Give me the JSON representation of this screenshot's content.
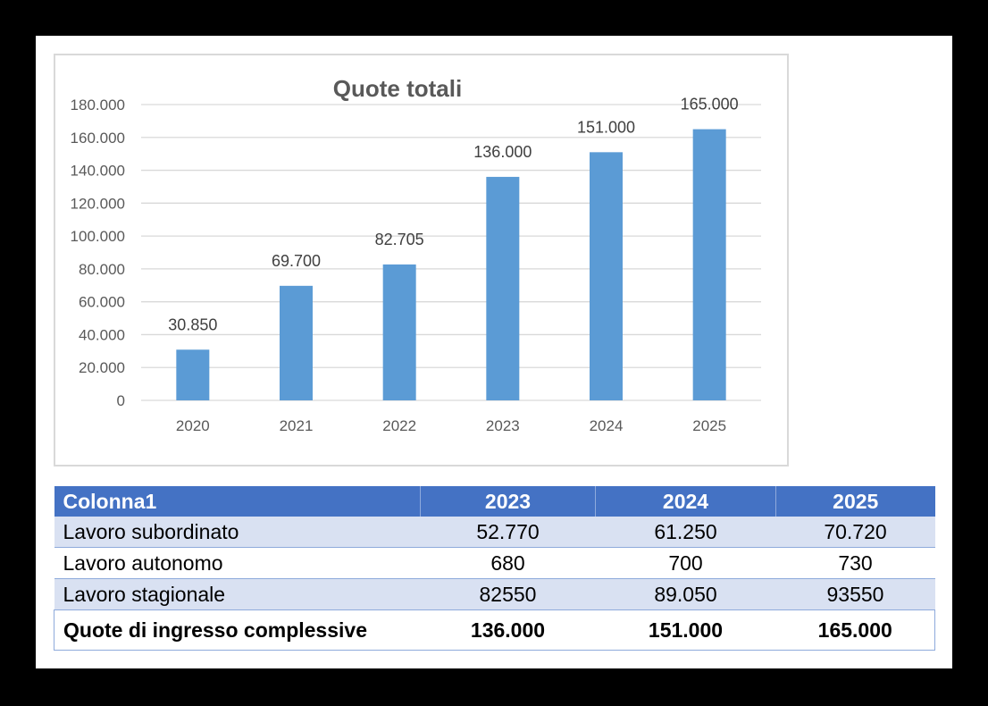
{
  "chart_data": {
    "type": "bar",
    "title": "Quote totali",
    "categories": [
      "2020",
      "2021",
      "2022",
      "2023",
      "2024",
      "2025"
    ],
    "values": [
      30850,
      69700,
      82705,
      136000,
      151000,
      165000
    ],
    "data_labels": [
      "30.850",
      "69.700",
      "82.705",
      "136.000",
      "151.000",
      "165.000"
    ],
    "y_ticks": [
      0,
      20000,
      40000,
      60000,
      80000,
      100000,
      120000,
      140000,
      160000,
      180000
    ],
    "y_tick_labels": [
      "0",
      "20.000",
      "40.000",
      "60.000",
      "80.000",
      "100.000",
      "120.000",
      "140.000",
      "160.000",
      "180.000"
    ],
    "ylim": [
      0,
      180000
    ],
    "xlabel": "",
    "ylabel": "",
    "grid": true,
    "legend": "none",
    "bar_color": "#5b9bd5"
  },
  "table": {
    "header": [
      "Colonna1",
      "2023",
      "2024",
      "2025"
    ],
    "rows": [
      [
        "Lavoro subordinato",
        "52.770",
        "61.250",
        "70.720"
      ],
      [
        "Lavoro autonomo",
        "680",
        "700",
        "730"
      ],
      [
        "Lavoro stagionale",
        "82550",
        "89.050",
        "93550"
      ]
    ],
    "total": [
      "Quote di ingresso complessive",
      "136.000",
      "151.000",
      "165.000"
    ],
    "header_color": "#4472c4",
    "band_color": "#d9e1f2"
  }
}
